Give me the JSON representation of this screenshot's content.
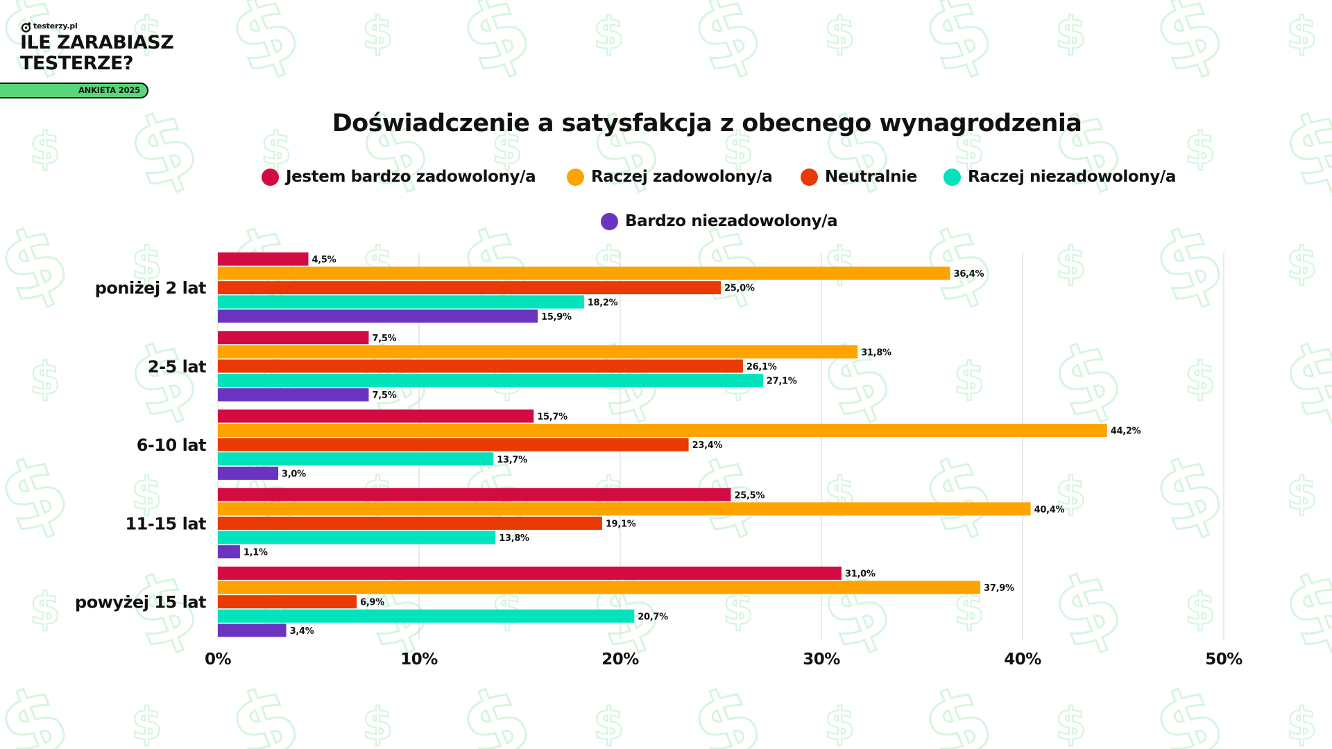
{
  "brand": {
    "logo_text": "testerzy.pl",
    "headline_line1": "ILE ZARABIASZ",
    "headline_line2": "TESTERZE?",
    "badge": "ANKIETA 2025",
    "badge_color": "#5ad67a"
  },
  "background": {
    "pattern_icon": "dollar-sign-icon",
    "pattern_color": "#d6f5df"
  },
  "chart_data": {
    "type": "bar",
    "orientation": "horizontal",
    "title": "Doświadczenie a satysfakcja z obecnego wynagrodzenia",
    "xlabel": "",
    "ylabel": "",
    "categories": [
      "poniżej 2 lat",
      "2-5 lat",
      "6-10 lat",
      "11-15 lat",
      "powyżej 15 lat"
    ],
    "series": [
      {
        "name": "Jestem bardzo zadowolony/a",
        "color": "#d20c43",
        "values": [
          4.5,
          7.5,
          15.7,
          25.5,
          31.0
        ],
        "labels": [
          "4,5%",
          "7,5%",
          "15,7%",
          "25,5%",
          "31,0%"
        ]
      },
      {
        "name": "Raczej zadowolony/a",
        "color": "#ffa300",
        "values": [
          36.4,
          31.8,
          44.2,
          40.4,
          37.9
        ],
        "labels": [
          "36,4%",
          "31,8%",
          "44,2%",
          "40,4%",
          "37,9%"
        ]
      },
      {
        "name": "Neutralnie",
        "color": "#e83a02",
        "values": [
          25.0,
          26.1,
          23.4,
          19.1,
          6.9
        ],
        "labels": [
          "25,0%",
          "26,1%",
          "23,4%",
          "19,1%",
          "6,9%"
        ]
      },
      {
        "name": "Raczej niezadowolony/a",
        "color": "#00e3bd",
        "values": [
          18.2,
          27.1,
          13.7,
          13.8,
          20.7
        ],
        "labels": [
          "18,2%",
          "27,1%",
          "13,7%",
          "13,8%",
          "20,7%"
        ]
      },
      {
        "name": "Bardzo niezadowolony/a",
        "color": "#6a34c0",
        "values": [
          15.9,
          7.5,
          3.0,
          1.1,
          3.4
        ],
        "labels": [
          "15,9%",
          "7,5%",
          "3,0%",
          "1,1%",
          "3,4%"
        ]
      }
    ],
    "xlim": [
      0,
      50
    ],
    "xticks": [
      0,
      10,
      20,
      30,
      40,
      50
    ],
    "xtick_labels": [
      "0%",
      "10%",
      "20%",
      "30%",
      "40%",
      "50%"
    ],
    "grid": "vertical",
    "legend_position": "top-center"
  }
}
